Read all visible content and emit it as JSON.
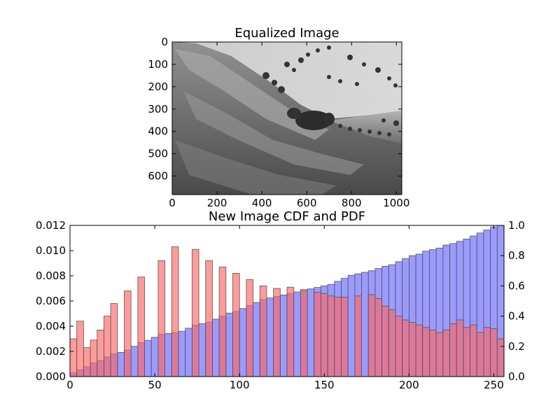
{
  "image_panel": {
    "title": "Equalized Image",
    "x_ticks": [
      "0",
      "200",
      "400",
      "600",
      "800",
      "1000"
    ],
    "y_ticks": [
      "0",
      "100",
      "200",
      "300",
      "400",
      "500",
      "600"
    ],
    "xlim": [
      0,
      1024
    ],
    "ylim": [
      0,
      683
    ],
    "content": "grayscale landscape photo of grassy hillside with trees and a field"
  },
  "chart_data": {
    "type": "bar",
    "title": "New Image CDF and PDF",
    "xlim": [
      0,
      256
    ],
    "ylim_left": [
      0.0,
      0.012
    ],
    "ylim_right": [
      0.0,
      1.0
    ],
    "x_ticks": [
      "0",
      "50",
      "100",
      "150",
      "200",
      "250"
    ],
    "y_ticks_left": [
      "0.000",
      "0.002",
      "0.004",
      "0.006",
      "0.008",
      "0.010",
      "0.012"
    ],
    "y_ticks_right": [
      "0.0",
      "0.2",
      "0.4",
      "0.6",
      "0.8",
      "1.0"
    ],
    "bin_width": 4,
    "series": [
      {
        "color": "#ff6666",
        "axis": "left",
        "x": [
          0,
          4,
          8,
          12,
          16,
          20,
          24,
          32,
          40,
          52,
          60,
          72,
          80,
          88,
          96,
          104,
          112,
          120,
          128,
          136,
          144,
          148,
          152,
          156,
          160,
          168,
          176,
          180,
          184,
          188,
          192,
          196,
          200,
          204,
          208,
          212,
          216,
          220,
          224,
          228,
          232,
          236,
          240,
          244,
          248,
          252
        ],
        "values": [
          0.003,
          0.0044,
          0.0023,
          0.0029,
          0.0037,
          0.0048,
          0.0058,
          0.0068,
          0.0079,
          0.0092,
          0.0103,
          0.0101,
          0.0092,
          0.0087,
          0.0082,
          0.0077,
          0.0072,
          0.007,
          0.0071,
          0.0069,
          0.0067,
          0.0066,
          0.0064,
          0.0063,
          0.0063,
          0.0064,
          0.0065,
          0.0062,
          0.0056,
          0.0053,
          0.0048,
          0.0045,
          0.0043,
          0.0041,
          0.0039,
          0.0037,
          0.0035,
          0.0037,
          0.0042,
          0.0045,
          0.0039,
          0.0041,
          0.0035,
          0.0039,
          0.0038,
          0.003
        ]
      },
      {
        "color": "#6666ff",
        "axis": "right",
        "x": [
          0,
          4,
          8,
          12,
          16,
          20,
          24,
          28,
          32,
          36,
          40,
          44,
          48,
          52,
          56,
          60,
          64,
          68,
          72,
          76,
          80,
          84,
          88,
          92,
          96,
          100,
          104,
          108,
          112,
          116,
          120,
          124,
          128,
          132,
          136,
          140,
          144,
          148,
          152,
          156,
          160,
          164,
          168,
          172,
          176,
          180,
          184,
          188,
          192,
          196,
          200,
          204,
          208,
          212,
          216,
          220,
          224,
          228,
          232,
          236,
          240,
          244,
          248,
          252
        ],
        "values": [
          0.025,
          0.045,
          0.065,
          0.09,
          0.105,
          0.13,
          0.15,
          0.16,
          0.175,
          0.2,
          0.225,
          0.24,
          0.26,
          0.28,
          0.285,
          0.29,
          0.3,
          0.32,
          0.34,
          0.35,
          0.36,
          0.38,
          0.4,
          0.42,
          0.43,
          0.45,
          0.47,
          0.49,
          0.51,
          0.52,
          0.53,
          0.54,
          0.55,
          0.56,
          0.57,
          0.58,
          0.59,
          0.6,
          0.61,
          0.63,
          0.65,
          0.67,
          0.68,
          0.69,
          0.7,
          0.715,
          0.73,
          0.74,
          0.76,
          0.78,
          0.8,
          0.81,
          0.83,
          0.84,
          0.85,
          0.87,
          0.88,
          0.895,
          0.91,
          0.93,
          0.95,
          0.97,
          0.99,
          1.0
        ]
      }
    ]
  }
}
